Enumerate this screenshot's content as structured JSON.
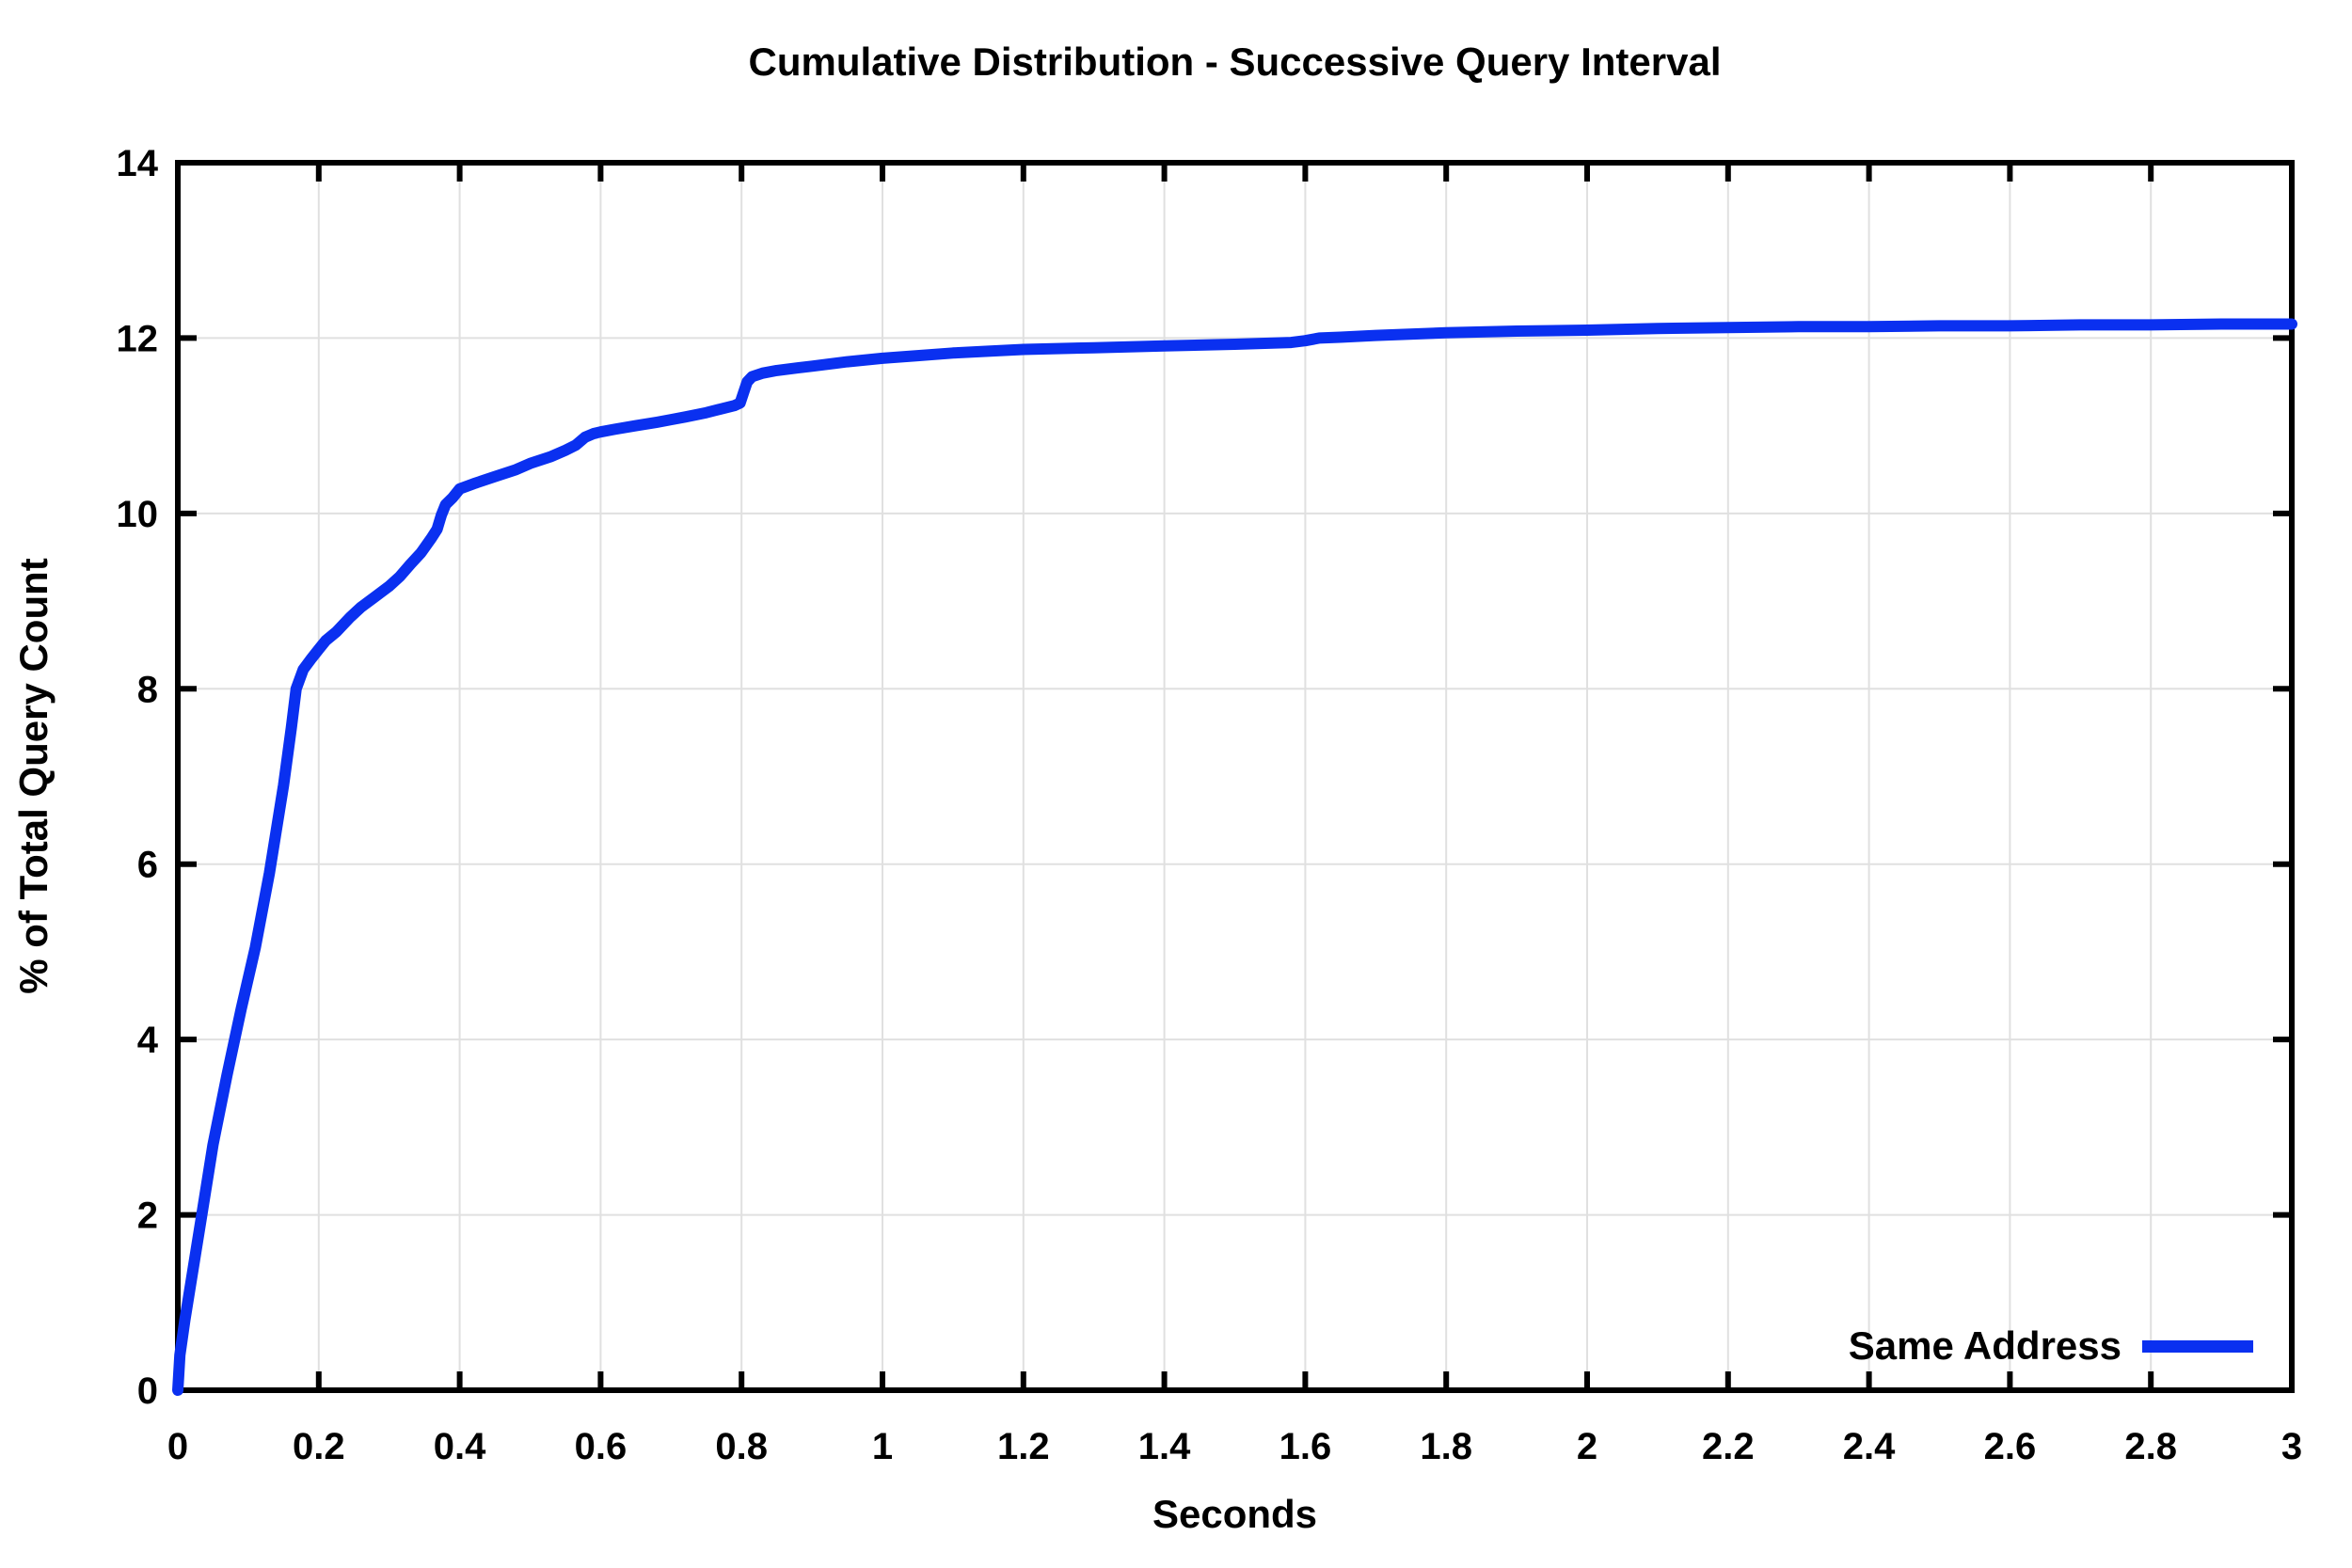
{
  "chart_data": {
    "type": "line",
    "title": "Cumulative Distribution - Successive Query Interval",
    "xlabel": "Seconds",
    "ylabel": "% of Total Query Count",
    "xlim": [
      0,
      3
    ],
    "ylim": [
      0,
      14
    ],
    "xtick_labels": [
      "0",
      "0.2",
      "0.4",
      "0.6",
      "0.8",
      "1",
      "1.2",
      "1.4",
      "1.6",
      "1.8",
      "2",
      "2.2",
      "2.4",
      "2.6",
      "2.8",
      "3"
    ],
    "ytick_labels": [
      "0",
      "2",
      "4",
      "6",
      "8",
      "10",
      "12",
      "14"
    ],
    "grid": true,
    "ticks": "inward-mirrored-all-sides",
    "legend_position": "bottom-right-inside",
    "series": [
      {
        "name": "Same Address",
        "color": "#0a30f0",
        "line_width": 12,
        "points": [
          [
            0,
            0
          ],
          [
            0.003,
            0.4
          ],
          [
            0.01,
            0.8
          ],
          [
            0.02,
            1.3
          ],
          [
            0.034,
            2.0
          ],
          [
            0.05,
            2.8
          ],
          [
            0.07,
            3.6
          ],
          [
            0.09,
            4.35
          ],
          [
            0.11,
            5.05
          ],
          [
            0.13,
            5.9
          ],
          [
            0.15,
            6.9
          ],
          [
            0.161,
            7.55
          ],
          [
            0.168,
            8.0
          ],
          [
            0.178,
            8.22
          ],
          [
            0.19,
            8.35
          ],
          [
            0.2,
            8.45
          ],
          [
            0.21,
            8.55
          ],
          [
            0.225,
            8.65
          ],
          [
            0.245,
            8.82
          ],
          [
            0.26,
            8.93
          ],
          [
            0.28,
            9.05
          ],
          [
            0.3,
            9.17
          ],
          [
            0.315,
            9.28
          ],
          [
            0.33,
            9.42
          ],
          [
            0.345,
            9.55
          ],
          [
            0.36,
            9.72
          ],
          [
            0.368,
            9.82
          ],
          [
            0.374,
            9.98
          ],
          [
            0.38,
            10.1
          ],
          [
            0.39,
            10.18
          ],
          [
            0.4,
            10.28
          ],
          [
            0.42,
            10.34
          ],
          [
            0.45,
            10.42
          ],
          [
            0.48,
            10.5
          ],
          [
            0.5,
            10.57
          ],
          [
            0.53,
            10.65
          ],
          [
            0.55,
            10.72
          ],
          [
            0.565,
            10.78
          ],
          [
            0.578,
            10.87
          ],
          [
            0.59,
            10.91
          ],
          [
            0.6,
            10.93
          ],
          [
            0.62,
            10.96
          ],
          [
            0.65,
            11.0
          ],
          [
            0.68,
            11.04
          ],
          [
            0.7,
            11.07
          ],
          [
            0.72,
            11.1
          ],
          [
            0.75,
            11.15
          ],
          [
            0.77,
            11.19
          ],
          [
            0.79,
            11.23
          ],
          [
            0.798,
            11.26
          ],
          [
            0.803,
            11.38
          ],
          [
            0.808,
            11.5
          ],
          [
            0.815,
            11.56
          ],
          [
            0.83,
            11.6
          ],
          [
            0.85,
            11.63
          ],
          [
            0.88,
            11.66
          ],
          [
            0.9,
            11.68
          ],
          [
            0.95,
            11.73
          ],
          [
            1.0,
            11.77
          ],
          [
            1.05,
            11.8
          ],
          [
            1.1,
            11.83
          ],
          [
            1.15,
            11.85
          ],
          [
            1.2,
            11.87
          ],
          [
            1.3,
            11.89
          ],
          [
            1.4,
            11.91
          ],
          [
            1.5,
            11.93
          ],
          [
            1.58,
            11.95
          ],
          [
            1.6,
            11.97
          ],
          [
            1.62,
            12.0
          ],
          [
            1.65,
            12.01
          ],
          [
            1.7,
            12.03
          ],
          [
            1.8,
            12.06
          ],
          [
            1.9,
            12.08
          ],
          [
            2.0,
            12.09
          ],
          [
            2.1,
            12.11
          ],
          [
            2.2,
            12.12
          ],
          [
            2.3,
            12.13
          ],
          [
            2.4,
            12.13
          ],
          [
            2.5,
            12.14
          ],
          [
            2.6,
            12.14
          ],
          [
            2.7,
            12.15
          ],
          [
            2.8,
            12.15
          ],
          [
            2.9,
            12.16
          ],
          [
            3.0,
            12.16
          ]
        ]
      }
    ]
  },
  "colors": {
    "background": "#ffffff",
    "axis": "#000000",
    "grid": "#e0e0e0",
    "text": "#000000",
    "line": "#0a30f0"
  }
}
